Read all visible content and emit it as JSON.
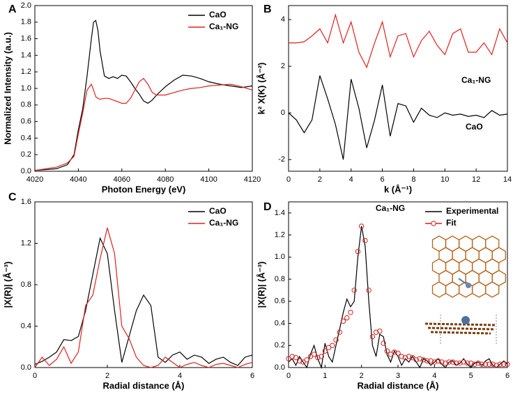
{
  "chart_data": [
    {
      "type": "line",
      "label": "A",
      "xlabel": "Photon Energy (eV)",
      "ylabel": "Normalized Intensity (a.u.)",
      "x": [
        4020,
        4030,
        4035,
        4038,
        4040,
        4042,
        4044,
        4046,
        4047,
        4048,
        4049,
        4050,
        4052,
        4054,
        4056,
        4058,
        4060,
        4062,
        4064,
        4066,
        4068,
        4070,
        4072,
        4074,
        4076,
        4080,
        4084,
        4088,
        4092,
        4096,
        4100,
        4105,
        4110,
        4115,
        4120
      ],
      "series": [
        {
          "name": "CaO",
          "color": "#000000",
          "values": [
            0.01,
            0.03,
            0.08,
            0.2,
            0.5,
            0.75,
            1.15,
            1.6,
            1.8,
            1.82,
            1.7,
            1.45,
            1.15,
            1.12,
            1.14,
            1.12,
            1.16,
            1.15,
            1.08,
            1.0,
            0.93,
            0.85,
            0.82,
            0.86,
            0.92,
            1.02,
            1.1,
            1.16,
            1.15,
            1.12,
            1.08,
            1.05,
            1.03,
            1.01,
            1.03
          ]
        },
        {
          "name": "Ca₁-NG",
          "color": "#e02020",
          "values": [
            0.01,
            0.05,
            0.1,
            0.18,
            0.45,
            0.7,
            0.98,
            1.05,
            0.98,
            0.9,
            0.88,
            0.87,
            0.88,
            0.88,
            0.86,
            0.84,
            0.82,
            0.82,
            0.88,
            0.98,
            1.08,
            1.12,
            1.05,
            0.95,
            0.92,
            0.92,
            0.95,
            0.98,
            1.0,
            1.01,
            1.03,
            1.04,
            1.05,
            1.02,
            0.98
          ]
        }
      ],
      "xlim": [
        4020,
        4120
      ],
      "xticks": [
        4020,
        4040,
        4060,
        4080,
        4100,
        4120
      ],
      "ylim": [
        0,
        2
      ],
      "yticks": [
        {
          "value": 0,
          "label": "0.0"
        },
        0.2,
        0.4,
        0.6,
        0.8,
        {
          "value": 1,
          "label": "1.0"
        },
        1.2,
        1.4,
        1.6,
        1.8,
        {
          "value": 2,
          "label": "2.0"
        }
      ],
      "legend": "upper right"
    },
    {
      "type": "line",
      "label": "B",
      "xlabel": "k (Å⁻¹)",
      "ylabel": "k² X(K) (Å⁻²)",
      "x": [
        0,
        0.5,
        1,
        1.5,
        2,
        2.5,
        3,
        3.5,
        4,
        4.5,
        5,
        5.5,
        6,
        6.5,
        7,
        7.5,
        8,
        8.5,
        9,
        9.5,
        10,
        10.5,
        11,
        11.5,
        12,
        12.5,
        13,
        13.5,
        14
      ],
      "series": [
        {
          "name": "Ca₁-NG",
          "color": "#e02020",
          "values": [
            3.0,
            3.0,
            3.05,
            3.3,
            3.6,
            3.0,
            4.2,
            3.0,
            3.9,
            2.6,
            1.95,
            3.0,
            3.9,
            2.4,
            3.3,
            3.4,
            2.4,
            3.1,
            3.5,
            2.9,
            2.5,
            3.4,
            3.6,
            2.6,
            2.6,
            3.0,
            2.5,
            3.6,
            3.0
          ]
        },
        {
          "name": "CaO",
          "color": "#000000",
          "values": [
            0,
            -0.3,
            -0.85,
            -0.3,
            1.6,
            0.6,
            -0.5,
            -2.0,
            1.45,
            0.2,
            -1.5,
            -0.3,
            1.2,
            -1.0,
            0.4,
            0.3,
            -0.4,
            0.2,
            -0.1,
            -0.2,
            0.0,
            -0.1,
            -0.05,
            -0.15,
            -0.1,
            -0.2,
            0.1,
            -0.1,
            -0.05
          ]
        }
      ],
      "xlim": [
        0,
        14
      ],
      "xticks": [
        0,
        2,
        4,
        6,
        8,
        10,
        12,
        14
      ],
      "ylim": [
        -2.5,
        4.6
      ],
      "yticks": [
        -2,
        0,
        2,
        4
      ]
    },
    {
      "type": "line",
      "label": "C",
      "xlabel": "Radial distance (Å)",
      "ylabel": "|X(R)| (Å⁻³)",
      "x": [
        0,
        0.2,
        0.4,
        0.6,
        0.8,
        1,
        1.2,
        1.4,
        1.6,
        1.8,
        2,
        2.2,
        2.4,
        2.6,
        2.8,
        3,
        3.2,
        3.4,
        3.6,
        3.8,
        4,
        4.2,
        4.4,
        4.6,
        4.8,
        5,
        5.2,
        5.4,
        5.6,
        5.8,
        6
      ],
      "series": [
        {
          "name": "CaO",
          "color": "#000000",
          "values": [
            0.03,
            0.06,
            0.1,
            0.15,
            0.27,
            0.26,
            0.3,
            0.55,
            0.9,
            1.25,
            1.1,
            0.55,
            0.05,
            0.3,
            0.55,
            0.7,
            0.6,
            0.1,
            0.05,
            0.12,
            0.15,
            0.08,
            0.12,
            0.1,
            0.04,
            0.08,
            0.1,
            0.05,
            0.02,
            0.1,
            0.12
          ]
        },
        {
          "name": "Ca₁-NG",
          "color": "#e02020",
          "values": [
            0.0,
            0.1,
            0.02,
            0.08,
            0.2,
            0.04,
            0.15,
            0.6,
            0.7,
            1.05,
            1.35,
            1.1,
            0.4,
            0.28,
            0.1,
            0.02,
            0.0,
            0.02,
            0.1,
            0.05,
            0.0,
            0.03,
            0.05,
            0.02,
            0.0,
            0.03,
            0.04,
            0.02,
            0.0,
            0.03,
            0.05
          ]
        }
      ],
      "xlim": [
        0,
        6
      ],
      "xticks": [
        0,
        2,
        4,
        6
      ],
      "ylim": [
        0,
        1.6
      ],
      "yticks": [
        {
          "value": 0,
          "label": "0.0"
        },
        0.4,
        0.8,
        1.2,
        1.6
      ],
      "legend": "upper right"
    },
    {
      "type": "line",
      "label": "D",
      "xlabel": "Radial distance (Å)",
      "ylabel": "|X(R)| (Å⁻³)",
      "annotation": "Ca₁-NG",
      "x": [
        0,
        0.1,
        0.2,
        0.3,
        0.4,
        0.5,
        0.6,
        0.7,
        0.8,
        0.9,
        1,
        1.1,
        1.2,
        1.3,
        1.4,
        1.5,
        1.6,
        1.7,
        1.8,
        1.9,
        2,
        2.1,
        2.2,
        2.3,
        2.4,
        2.5,
        2.6,
        2.7,
        2.8,
        2.9,
        3,
        3.1,
        3.2,
        3.3,
        3.4,
        3.5,
        3.6,
        3.7,
        3.8,
        3.9,
        4,
        4.1,
        4.2,
        4.3,
        4.4,
        4.5,
        4.6,
        4.7,
        4.8,
        4.9,
        5,
        5.1,
        5.2,
        5.3,
        5.4,
        5.5,
        5.6,
        5.7,
        5.8,
        5.9,
        6
      ],
      "series": [
        {
          "name": "Experimental",
          "color": "#000000",
          "marker": "none",
          "values": [
            0.05,
            0.08,
            0.02,
            0.1,
            0.05,
            0.0,
            0.12,
            0.2,
            0.08,
            0.0,
            0.22,
            0.1,
            0.05,
            0.2,
            0.35,
            0.5,
            0.62,
            0.55,
            0.6,
            1.0,
            1.28,
            1.1,
            0.6,
            0.2,
            0.1,
            0.3,
            0.28,
            0.12,
            0.05,
            0.15,
            0.1,
            0.02,
            0.08,
            0.05,
            0.1,
            0.05,
            0.0,
            0.08,
            0.06,
            0.02,
            0.05,
            0.08,
            0.03,
            0.0,
            0.05,
            0.06,
            0.02,
            0.04,
            0.08,
            0.03,
            0.0,
            0.04,
            0.05,
            0.02,
            0.06,
            0.08,
            0.02,
            0.0,
            0.03,
            0.06,
            0.03
          ]
        },
        {
          "name": "Fit",
          "color": "#d62020",
          "marker": "open-circle",
          "values": [
            0.08,
            0.1,
            0.09,
            0.06,
            0.05,
            0.07,
            0.1,
            0.12,
            0.09,
            0.1,
            0.15,
            0.18,
            0.2,
            0.25,
            0.32,
            0.42,
            0.45,
            0.5,
            0.7,
            1.05,
            1.28,
            1.15,
            0.7,
            0.28,
            0.32,
            0.33,
            0.22,
            0.15,
            0.12,
            0.14,
            0.13,
            0.1,
            0.09,
            0.1,
            0.09,
            0.07,
            0.08,
            0.07,
            0.06,
            0.06,
            0.05,
            0.06,
            0.05,
            0.04,
            0.05,
            0.05,
            0.04,
            0.04,
            0.05,
            0.04,
            0.04,
            0.03,
            0.04,
            0.03,
            0.03,
            0.03,
            0.03,
            0.02,
            0.03,
            0.03,
            0.03
          ]
        }
      ],
      "xlim": [
        0,
        6
      ],
      "xticks": [
        0,
        1,
        2,
        3,
        4,
        5,
        6
      ],
      "ylim": [
        0,
        1.5
      ],
      "yticks": [
        {
          "value": 0,
          "label": "0.0"
        },
        0.2,
        0.4,
        0.6,
        0.8,
        {
          "value": 1,
          "label": "1.0"
        },
        1.2,
        1.4
      ],
      "legend": "upper right"
    }
  ]
}
